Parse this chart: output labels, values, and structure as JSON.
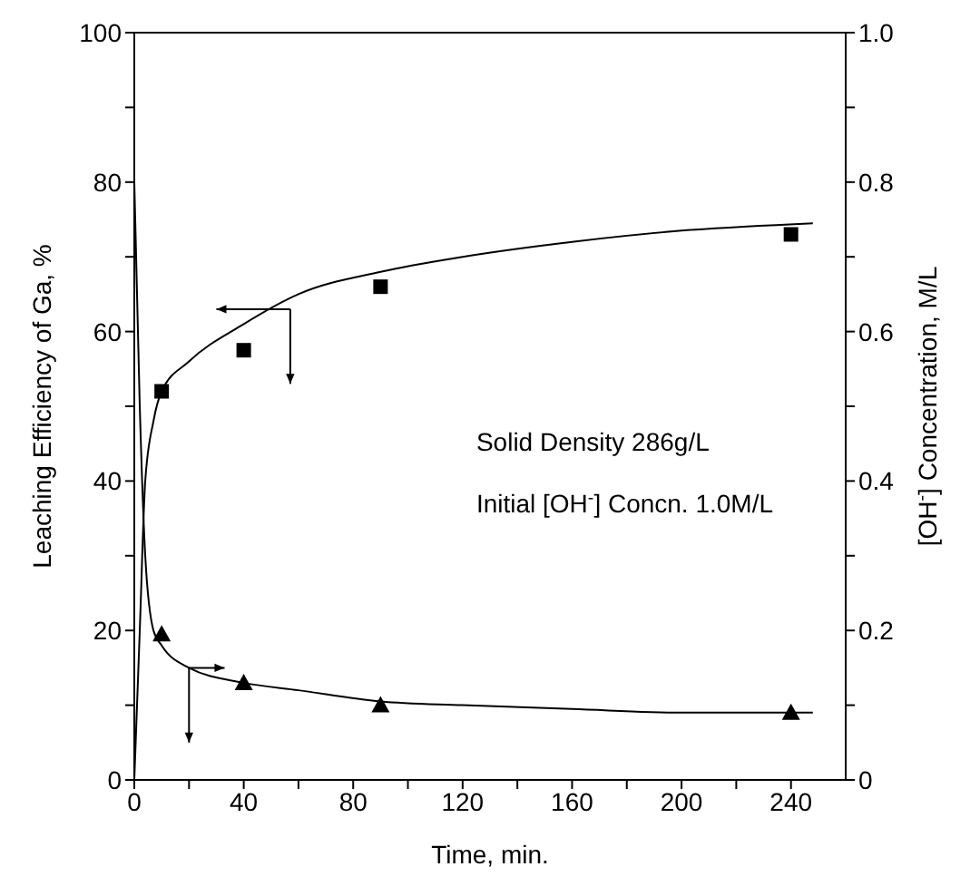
{
  "chart_data": {
    "type": "scatter",
    "xlabel": "Time,  min.",
    "ylabel": "Leaching Efficiency of Ga,  %",
    "y2label": "[OH$^{-}$] Concentration,  M/L",
    "annotations": [
      "Solid Density  286g/L",
      "Initial [OH$^{-}$] Concn.  1.0M/L"
    ],
    "xlim": [
      0,
      260
    ],
    "xticks": [
      0,
      {
        "value": 20,
        "label": null
      },
      40,
      {
        "value": 60,
        "label": null
      },
      80,
      {
        "value": 100,
        "label": null
      },
      120,
      {
        "value": 140,
        "label": null
      },
      160,
      {
        "value": 180,
        "label": null
      },
      200,
      {
        "value": 220,
        "label": null
      },
      240
    ],
    "ylim": [
      0,
      100
    ],
    "yticks": [
      0,
      {
        "value": 10,
        "label": null
      },
      20,
      {
        "value": 30,
        "label": null
      },
      40,
      {
        "value": 50,
        "label": null
      },
      60,
      {
        "value": 70,
        "label": null
      },
      80,
      {
        "value": 90,
        "label": null
      },
      100
    ],
    "y2lim": [
      0,
      1
    ],
    "y2ticks": [
      0,
      {
        "value": 0.1,
        "label": null
      },
      0.2,
      {
        "value": 0.3,
        "label": null
      },
      0.4,
      {
        "value": 0.5,
        "label": null
      },
      0.6,
      {
        "value": 0.7,
        "label": null
      },
      0.8,
      {
        "value": 0.9,
        "label": null
      },
      {
        "value": 1,
        "label": "1.0"
      }
    ],
    "series": [
      {
        "marker": "square",
        "color": "#000000",
        "x": [
          10,
          40,
          90,
          240
        ],
        "values": [
          52,
          57.5,
          66,
          73
        ]
      },
      {
        "marker": "triangle",
        "axis": "y2",
        "color": "#000000",
        "x": [
          10,
          40,
          90,
          240
        ],
        "values": [
          0.195,
          0.13,
          0.1,
          0.09
        ]
      },
      {
        "type": "line",
        "marker": "none",
        "color": "#000000",
        "x": [
          0,
          2,
          4,
          7,
          10,
          20,
          40,
          60,
          90,
          120,
          160,
          200,
          248
        ],
        "values": [
          0,
          20,
          40,
          48,
          52,
          56,
          61,
          65,
          68,
          70,
          72,
          73.5,
          74.5
        ]
      },
      {
        "type": "line",
        "marker": "none",
        "axis": "y2",
        "color": "#000000",
        "x": [
          0,
          2,
          4,
          7,
          10,
          20,
          40,
          60,
          90,
          120,
          160,
          200,
          248
        ],
        "values": [
          0.8,
          0.5,
          0.3,
          0.2,
          0.18,
          0.15,
          0.13,
          0.12,
          0.105,
          0.1,
          0.095,
          0.09,
          0.09
        ]
      }
    ]
  }
}
